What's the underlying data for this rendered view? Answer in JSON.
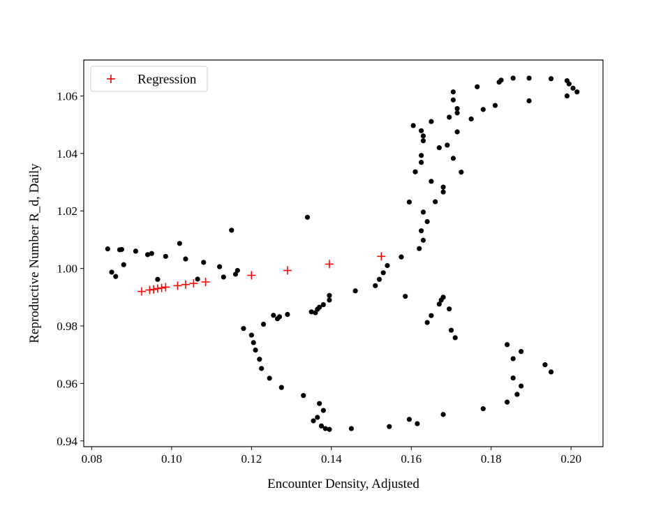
{
  "chart_data": {
    "type": "scatter",
    "xlabel": "Encounter Density, Adjusted",
    "ylabel": "Reproductive Number R_d, Daily",
    "xlim": [
      0.078,
      0.208
    ],
    "ylim": [
      0.938,
      1.0725
    ],
    "xticks": [
      0.08,
      0.1,
      0.12,
      0.14,
      0.16,
      0.18,
      0.2
    ],
    "xtick_labels": [
      "0.08",
      "0.10",
      "0.12",
      "0.14",
      "0.16",
      "0.18",
      "0.20"
    ],
    "yticks": [
      0.94,
      0.96,
      0.98,
      1.0,
      1.02,
      1.04,
      1.06
    ],
    "ytick_labels": [
      "0.94",
      "0.96",
      "0.98",
      "1.00",
      "1.02",
      "1.04",
      "1.06"
    ],
    "grid": false,
    "legend": {
      "position": "top-left",
      "entries": [
        "Regression"
      ]
    },
    "series": [
      {
        "marker": "dot",
        "color": "#000000",
        "points": [
          [
            0.084,
            1.0068
          ],
          [
            0.085,
            0.9987
          ],
          [
            0.086,
            0.9972
          ],
          [
            0.087,
            1.0065
          ],
          [
            0.0875,
            1.0066
          ],
          [
            0.088,
            1.0013
          ],
          [
            0.091,
            1.006
          ],
          [
            0.094,
            1.0048
          ],
          [
            0.095,
            1.0052
          ],
          [
            0.0965,
            0.9962
          ],
          [
            0.0985,
            1.0042
          ],
          [
            0.102,
            1.0087
          ],
          [
            0.1035,
            1.0033
          ],
          [
            0.1065,
            0.9963
          ],
          [
            0.108,
            1.0021
          ],
          [
            0.112,
            1.0006
          ],
          [
            0.113,
            0.997
          ],
          [
            0.115,
            1.0133
          ],
          [
            0.116,
            0.998
          ],
          [
            0.1165,
            0.9993
          ],
          [
            0.118,
            0.9791
          ],
          [
            0.12,
            0.9768
          ],
          [
            0.1205,
            0.9742
          ],
          [
            0.121,
            0.9716
          ],
          [
            0.122,
            0.9684
          ],
          [
            0.1225,
            0.9652
          ],
          [
            0.1245,
            0.9618
          ],
          [
            0.1255,
            0.9837
          ],
          [
            0.1265,
            0.9825
          ],
          [
            0.127,
            0.9832
          ],
          [
            0.1275,
            0.9586
          ],
          [
            0.129,
            0.984
          ],
          [
            0.123,
            0.9806
          ],
          [
            0.133,
            0.9558
          ],
          [
            0.134,
            1.0178
          ],
          [
            0.135,
            0.9849
          ],
          [
            0.136,
            0.9846
          ],
          [
            0.1365,
            0.9858
          ],
          [
            0.137,
            0.9865
          ],
          [
            0.138,
            0.9874
          ],
          [
            0.1355,
            0.947
          ],
          [
            0.1365,
            0.9482
          ],
          [
            0.137,
            0.953
          ],
          [
            0.1375,
            0.9452
          ],
          [
            0.138,
            0.9506
          ],
          [
            0.1385,
            0.9443
          ],
          [
            0.1395,
            0.944
          ],
          [
            0.1395,
            0.9906
          ],
          [
            0.1395,
            0.989
          ],
          [
            0.145,
            0.9443
          ],
          [
            0.146,
            0.9922
          ],
          [
            0.151,
            0.994
          ],
          [
            0.152,
            0.9962
          ],
          [
            0.153,
            0.9985
          ],
          [
            0.154,
            1.001
          ],
          [
            0.1545,
            0.945
          ],
          [
            0.1575,
            1.004
          ],
          [
            0.1585,
            0.9903
          ],
          [
            0.1595,
            1.0231
          ],
          [
            0.1595,
            0.9475
          ],
          [
            0.1605,
            1.0497
          ],
          [
            0.161,
            1.0336
          ],
          [
            0.1615,
            0.946
          ],
          [
            0.162,
            1.0069
          ],
          [
            0.1625,
            1.0131
          ],
          [
            0.1625,
            1.0369
          ],
          [
            0.1625,
            1.0393
          ],
          [
            0.1625,
            1.0479
          ],
          [
            0.163,
            1.0098
          ],
          [
            0.163,
            1.0196
          ],
          [
            0.163,
            1.0444
          ],
          [
            0.163,
            1.0461
          ],
          [
            0.164,
            1.0163
          ],
          [
            0.164,
            0.9812
          ],
          [
            0.165,
            0.9836
          ],
          [
            0.165,
            1.0303
          ],
          [
            0.165,
            1.0511
          ],
          [
            0.166,
            1.0232
          ],
          [
            0.167,
            1.042
          ],
          [
            0.167,
            0.9876
          ],
          [
            0.1675,
            0.989
          ],
          [
            0.168,
            0.99
          ],
          [
            0.168,
            1.0266
          ],
          [
            0.168,
            1.0283
          ],
          [
            0.168,
            0.9492
          ],
          [
            0.169,
            1.0429
          ],
          [
            0.1695,
            0.9859
          ],
          [
            0.1695,
            1.0526
          ],
          [
            0.17,
            0.9785
          ],
          [
            0.1705,
            1.0383
          ],
          [
            0.1705,
            1.0586
          ],
          [
            0.1705,
            1.0614
          ],
          [
            0.171,
            0.9759
          ],
          [
            0.1715,
            1.0475
          ],
          [
            0.1715,
            1.0541
          ],
          [
            0.1715,
            1.0556
          ],
          [
            0.1725,
            1.0335
          ],
          [
            0.175,
            1.052
          ],
          [
            0.1765,
            1.0632
          ],
          [
            0.178,
            1.0553
          ],
          [
            0.178,
            0.9512
          ],
          [
            0.181,
            1.0567
          ],
          [
            0.182,
            1.0648
          ],
          [
            0.1825,
            1.0655
          ],
          [
            0.184,
            0.9735
          ],
          [
            0.184,
            0.9535
          ],
          [
            0.1855,
            1.0662
          ],
          [
            0.1855,
            0.9686
          ],
          [
            0.1855,
            0.9619
          ],
          [
            0.1865,
            0.9562
          ],
          [
            0.1875,
            0.9591
          ],
          [
            0.1875,
            0.9711
          ],
          [
            0.1895,
            1.0583
          ],
          [
            0.1895,
            1.0662
          ],
          [
            0.1935,
            0.9665
          ],
          [
            0.195,
            1.066
          ],
          [
            0.195,
            0.964
          ],
          [
            0.199,
            1.0653
          ],
          [
            0.199,
            1.06
          ],
          [
            0.1995,
            1.0642
          ],
          [
            0.2005,
            1.0627
          ],
          [
            0.2015,
            1.0614
          ]
        ]
      },
      {
        "name": "Regression",
        "marker": "plus",
        "color": "#ff0000",
        "points": [
          [
            0.0925,
            0.992
          ],
          [
            0.0945,
            0.9925
          ],
          [
            0.0955,
            0.9927
          ],
          [
            0.0965,
            0.993
          ],
          [
            0.0975,
            0.9932
          ],
          [
            0.0985,
            0.9935
          ],
          [
            0.1015,
            0.994
          ],
          [
            0.1035,
            0.9944
          ],
          [
            0.1055,
            0.9948
          ],
          [
            0.1085,
            0.9953
          ],
          [
            0.12,
            0.9976
          ],
          [
            0.129,
            0.9993
          ],
          [
            0.1395,
            1.0015
          ],
          [
            0.1525,
            1.0042
          ]
        ]
      }
    ]
  }
}
